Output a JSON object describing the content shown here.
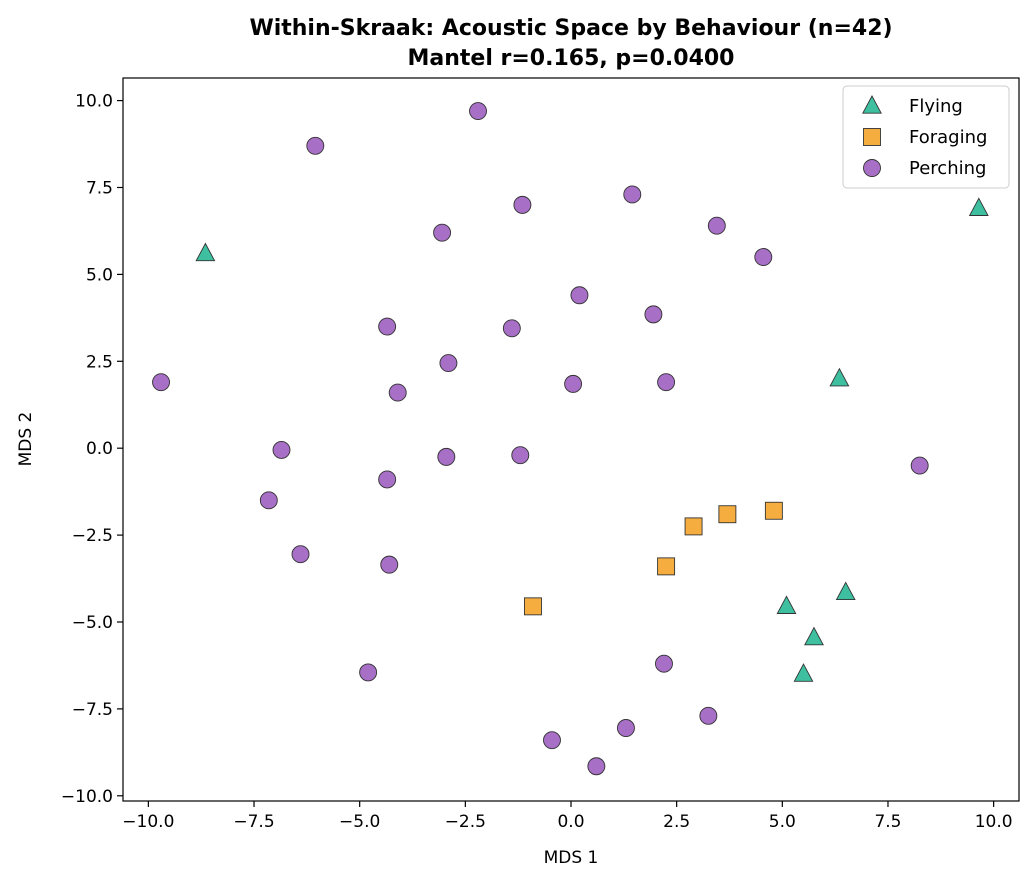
{
  "chart_data": {
    "type": "scatter",
    "title_line1": "Within-Skraak: Acoustic Space by Behaviour (n=42)",
    "title_line2": "Mantel r=0.165, p=0.0400",
    "xlabel": "MDS 1",
    "ylabel": "MDS 2",
    "xlim": [
      -10.6,
      10.6
    ],
    "ylim": [
      -10.15,
      10.65
    ],
    "xticks": [
      -10.0,
      -7.5,
      -5.0,
      -2.5,
      0.0,
      2.5,
      5.0,
      7.5,
      10.0
    ],
    "yticks": [
      -10.0,
      -7.5,
      -5.0,
      -2.5,
      0.0,
      2.5,
      5.0,
      7.5,
      10.0
    ],
    "xtick_labels": [
      "−10.0",
      "−7.5",
      "−5.0",
      "−2.5",
      "0.0",
      "2.5",
      "5.0",
      "7.5",
      "10.0"
    ],
    "ytick_labels": [
      "−10.0",
      "−7.5",
      "−5.0",
      "−2.5",
      "0.0",
      "2.5",
      "5.0",
      "7.5",
      "10.0"
    ],
    "grid": false,
    "legend_position": "top-right",
    "series": [
      {
        "name": "Flying",
        "marker": "triangle",
        "color": "#3dbfa0",
        "points": [
          [
            -8.65,
            5.6
          ],
          [
            9.65,
            6.9
          ],
          [
            6.35,
            2.0
          ],
          [
            5.1,
            -4.55
          ],
          [
            6.5,
            -4.15
          ],
          [
            5.75,
            -5.45
          ],
          [
            5.5,
            -6.5
          ]
        ]
      },
      {
        "name": "Foraging",
        "marker": "square",
        "color": "#f6ad40",
        "points": [
          [
            2.9,
            -2.25
          ],
          [
            3.7,
            -1.9
          ],
          [
            4.8,
            -1.8
          ],
          [
            2.25,
            -3.4
          ],
          [
            -0.9,
            -4.55
          ]
        ]
      },
      {
        "name": "Perching",
        "marker": "circle",
        "color": "#a76fc6",
        "points": [
          [
            -2.2,
            9.7
          ],
          [
            -6.05,
            8.7
          ],
          [
            1.45,
            7.3
          ],
          [
            -1.15,
            7.0
          ],
          [
            -3.05,
            6.2
          ],
          [
            3.45,
            6.4
          ],
          [
            4.55,
            5.5
          ],
          [
            0.2,
            4.4
          ],
          [
            -4.35,
            3.5
          ],
          [
            -1.4,
            3.45
          ],
          [
            1.95,
            3.85
          ],
          [
            -2.9,
            2.45
          ],
          [
            -9.7,
            1.9
          ],
          [
            -4.1,
            1.6
          ],
          [
            0.05,
            1.85
          ],
          [
            2.25,
            1.9
          ],
          [
            -6.85,
            -0.05
          ],
          [
            -2.95,
            -0.25
          ],
          [
            -1.2,
            -0.2
          ],
          [
            -4.35,
            -0.9
          ],
          [
            8.25,
            -0.5
          ],
          [
            -7.15,
            -1.5
          ],
          [
            -6.4,
            -3.05
          ],
          [
            -4.3,
            -3.35
          ],
          [
            2.2,
            -6.2
          ],
          [
            -4.8,
            -6.45
          ],
          [
            3.25,
            -7.7
          ],
          [
            1.3,
            -8.05
          ],
          [
            -0.45,
            -8.4
          ],
          [
            0.6,
            -9.15
          ]
        ]
      }
    ]
  }
}
